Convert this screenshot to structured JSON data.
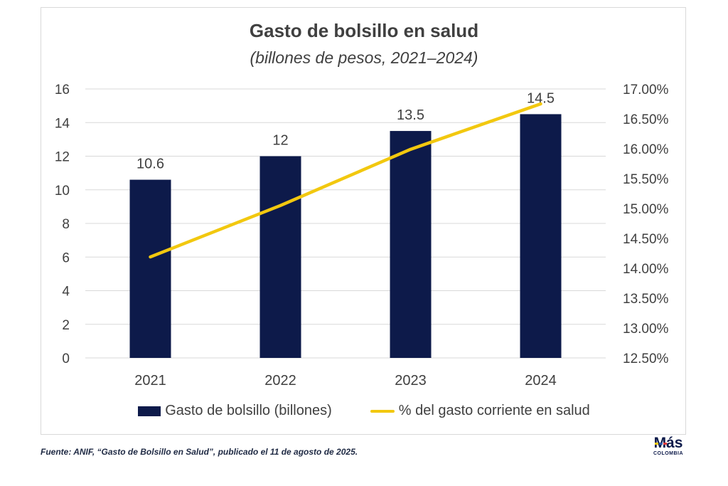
{
  "chart_data": {
    "type": "bar",
    "title": "Gasto de bolsillo en salud",
    "subtitle": "(billones de pesos, 2021–2024)",
    "categories": [
      "2021",
      "2022",
      "2023",
      "2024"
    ],
    "series": [
      {
        "name": "Gasto de bolsillo (billones)",
        "type": "bar",
        "axis": "left",
        "color": "#0d1a4a",
        "values": [
          10.6,
          12,
          13.5,
          14.5
        ],
        "data_labels": [
          "10.6",
          "12",
          "13.5",
          "14.5"
        ]
      },
      {
        "name": "% del gasto corriente en salud",
        "type": "line",
        "axis": "right",
        "color": "#f2c80f",
        "values": [
          14.19,
          15.05,
          15.99,
          16.75
        ]
      }
    ],
    "y_left": {
      "range": [
        0,
        16
      ],
      "ticks": [
        "0",
        "2",
        "4",
        "6",
        "8",
        "10",
        "12",
        "14",
        "16"
      ]
    },
    "y_right": {
      "range": [
        12.5,
        17.0
      ],
      "ticks": [
        "12.50%",
        "13.00%",
        "13.50%",
        "14.00%",
        "14.50%",
        "15.00%",
        "15.50%",
        "16.00%",
        "16.50%",
        "17.00%"
      ]
    },
    "grid": true,
    "legend_position": "bottom"
  },
  "footer": {
    "source": "Fuente: ANIF, “Gasto de Bolsillo en Salud”, publicado el 11 de agosto de 2025."
  },
  "logo": {
    "main": "Más",
    "sub": "COLOMBIA",
    "dot_colors": [
      "#f2c80f",
      "#2e5aac",
      "#e23b3b"
    ]
  }
}
